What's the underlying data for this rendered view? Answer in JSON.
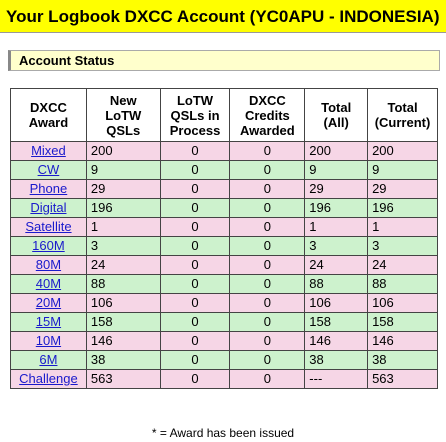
{
  "title": "Your Logbook DXCC Account (YC0APU - INDONESIA)",
  "section": "Account Status",
  "table": {
    "header": [
      [
        "DXCC",
        "Award"
      ],
      [
        "New",
        "LoTW",
        "QSLs"
      ],
      [
        "LoTW",
        "QSLs in",
        "Process"
      ],
      [
        "DXCC",
        "Credits",
        "Awarded"
      ],
      [
        "Total",
        "(All)"
      ],
      [
        "Total",
        "(Current)"
      ]
    ],
    "rows": [
      [
        "Mixed",
        200,
        0,
        0,
        200,
        200
      ],
      [
        "CW",
        9,
        0,
        0,
        9,
        9
      ],
      [
        "Phone",
        29,
        0,
        0,
        29,
        29
      ],
      [
        "Digital",
        196,
        0,
        0,
        196,
        196
      ],
      [
        "Satellite",
        1,
        0,
        0,
        1,
        1
      ],
      [
        "160M",
        3,
        0,
        0,
        3,
        3
      ],
      [
        "80M",
        24,
        0,
        0,
        24,
        24
      ],
      [
        "40M",
        88,
        0,
        0,
        88,
        88
      ],
      [
        "20M",
        106,
        0,
        0,
        106,
        106
      ],
      [
        "15M",
        158,
        0,
        0,
        158,
        158
      ],
      [
        "10M",
        146,
        0,
        0,
        146,
        146
      ],
      [
        "6M",
        38,
        0,
        0,
        38,
        38
      ],
      [
        "Challenge",
        563,
        0,
        0,
        "---",
        563
      ]
    ]
  },
  "footnote": "* = Award has been issued"
}
